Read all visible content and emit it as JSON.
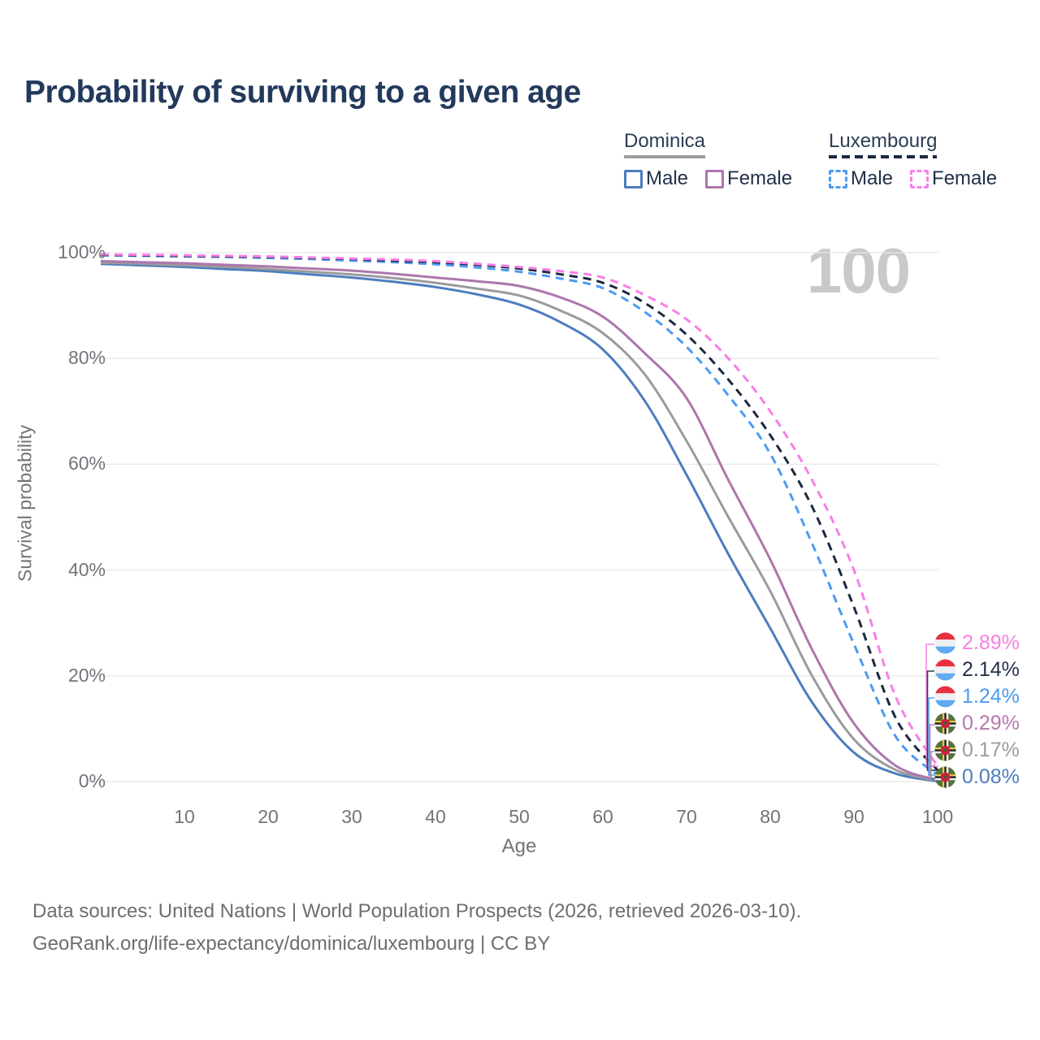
{
  "title": "Probability of surviving to a given age",
  "watermark": "100",
  "legend": {
    "groups": [
      {
        "label": "Dominica",
        "line_style": "solid",
        "underline_color": "#9e9e9e",
        "items": [
          {
            "label": "Male",
            "color": "#4c7dbf",
            "dashed": false
          },
          {
            "label": "Female",
            "color": "#ad76ad",
            "dashed": false
          }
        ]
      },
      {
        "label": "Luxembourg",
        "line_style": "dashed",
        "underline_color": "#1b2a40",
        "items": [
          {
            "label": "Male",
            "color": "#4b9bf1",
            "dashed": true
          },
          {
            "label": "Female",
            "color": "#f97ee6",
            "dashed": true
          }
        ]
      }
    ]
  },
  "chart_data": {
    "type": "line",
    "title": "Probability of surviving to a given age",
    "xlabel": "Age",
    "ylabel": "Survival probability",
    "xlim": [
      0,
      100
    ],
    "ylim": [
      0,
      100
    ],
    "grid": "horizontal-only",
    "xticks": [
      10,
      20,
      30,
      40,
      50,
      60,
      70,
      80,
      90,
      100
    ],
    "yticks": [
      {
        "pct": 0,
        "label": "0%"
      },
      {
        "pct": 20,
        "label": "20%"
      },
      {
        "pct": 40,
        "label": "40%"
      },
      {
        "pct": 60,
        "label": "60%"
      },
      {
        "pct": 80,
        "label": "80%"
      },
      {
        "pct": 100,
        "label": "100%"
      }
    ],
    "x": [
      0,
      5,
      10,
      15,
      20,
      25,
      30,
      35,
      40,
      45,
      50,
      55,
      60,
      65,
      70,
      75,
      80,
      85,
      90,
      95,
      100
    ],
    "series": [
      {
        "name": "Dominica — Male",
        "country": "Dominica",
        "sex": "male",
        "line": "solid",
        "color": "#4c7dbf",
        "final_label": "0.08%",
        "values": [
          97.9,
          97.6,
          97.3,
          96.9,
          96.5,
          95.9,
          95.3,
          94.5,
          93.5,
          92.1,
          90.2,
          86.8,
          81.7,
          72.0,
          58.0,
          43.0,
          29.0,
          15.0,
          5.5,
          1.5,
          0.08
        ]
      },
      {
        "name": "Dominica — Both sexes",
        "country": "Dominica",
        "sex": "total",
        "line": "solid",
        "color": "#9b9b9b",
        "final_label": "0.17%",
        "values": [
          98.1,
          97.9,
          97.6,
          97.3,
          96.9,
          96.4,
          95.9,
          95.2,
          94.3,
          93.2,
          91.9,
          89.0,
          84.8,
          77.0,
          64.4,
          50.0,
          36.0,
          20.0,
          8.0,
          2.2,
          0.17
        ]
      },
      {
        "name": "Dominica — Female",
        "country": "Dominica",
        "sex": "female",
        "line": "solid",
        "color": "#ad76ad",
        "final_label": "0.29%",
        "values": [
          98.4,
          98.2,
          98.0,
          97.7,
          97.4,
          97.0,
          96.6,
          96.0,
          95.3,
          94.6,
          93.7,
          91.5,
          87.9,
          81.0,
          72.5,
          57.0,
          42.0,
          25.0,
          11.0,
          3.0,
          0.29
        ]
      },
      {
        "name": "Luxembourg — Male",
        "country": "Luxembourg",
        "sex": "male",
        "line": "dashed",
        "color": "#4b9bf1",
        "final_label": "1.24%",
        "values": [
          99.5,
          99.4,
          99.3,
          99.2,
          99.0,
          98.8,
          98.5,
          98.2,
          97.8,
          97.2,
          96.4,
          95.1,
          93.3,
          88.8,
          82.2,
          73.0,
          62.0,
          45.0,
          26.0,
          8.5,
          1.24
        ]
      },
      {
        "name": "Luxembourg — Both sexes",
        "country": "Luxembourg",
        "sex": "total",
        "line": "dashed",
        "color": "#1b2a40",
        "final_label": "2.14%",
        "values": [
          99.6,
          99.5,
          99.4,
          99.3,
          99.2,
          99.0,
          98.8,
          98.5,
          98.2,
          97.7,
          97.0,
          95.9,
          94.3,
          90.5,
          84.5,
          76.0,
          65.5,
          52.0,
          33.0,
          12.0,
          2.14
        ]
      },
      {
        "name": "Luxembourg — Female",
        "country": "Luxembourg",
        "sex": "female",
        "line": "dashed",
        "color": "#f97ee6",
        "final_label": "2.89%",
        "values": [
          99.7,
          99.6,
          99.5,
          99.4,
          99.3,
          99.1,
          98.9,
          98.7,
          98.4,
          97.9,
          97.3,
          96.5,
          95.3,
          92.0,
          87.4,
          80.0,
          70.0,
          57.0,
          40.0,
          16.0,
          2.89
        ]
      }
    ]
  },
  "end_labels": [
    {
      "value": "2.89%",
      "pct": 2.89,
      "color": "#f57fe0",
      "flag": "luxembourg",
      "series": "Luxembourg — Female"
    },
    {
      "value": "2.14%",
      "pct": 2.14,
      "color": "#22304a",
      "flag": "luxembourg",
      "series": "Luxembourg — Both sexes"
    },
    {
      "value": "1.24%",
      "pct": 1.24,
      "color": "#4b9bf1",
      "flag": "luxembourg",
      "series": "Luxembourg — Male"
    },
    {
      "value": "0.29%",
      "pct": 0.29,
      "color": "#b379ae",
      "flag": "dominica",
      "series": "Dominica — Female"
    },
    {
      "value": "0.17%",
      "pct": 0.17,
      "color": "#9b9ba0",
      "flag": "dominica",
      "series": "Dominica — Both sexes"
    },
    {
      "value": "0.08%",
      "pct": 0.08,
      "color": "#4c7dbf",
      "flag": "dominica",
      "series": "Dominica — Male"
    }
  ],
  "icons": {
    "luxembourg_flag_stripes": [
      "#e8303e",
      "#eef0f4",
      "#62a9f2"
    ],
    "dominica_flag": {
      "field": "#55703c",
      "cross": [
        "#e3cb45",
        "#20242e",
        "#f4f4f6"
      ],
      "disc": "#d0203a",
      "parrot": "#3c5e31"
    }
  },
  "footer": {
    "line1": "Data sources: United Nations | World Population Prospects (2026, retrieved 2026-03-10).",
    "line2": "GeoRank.org/life-expectancy/dominica/luxembourg | CC BY"
  }
}
